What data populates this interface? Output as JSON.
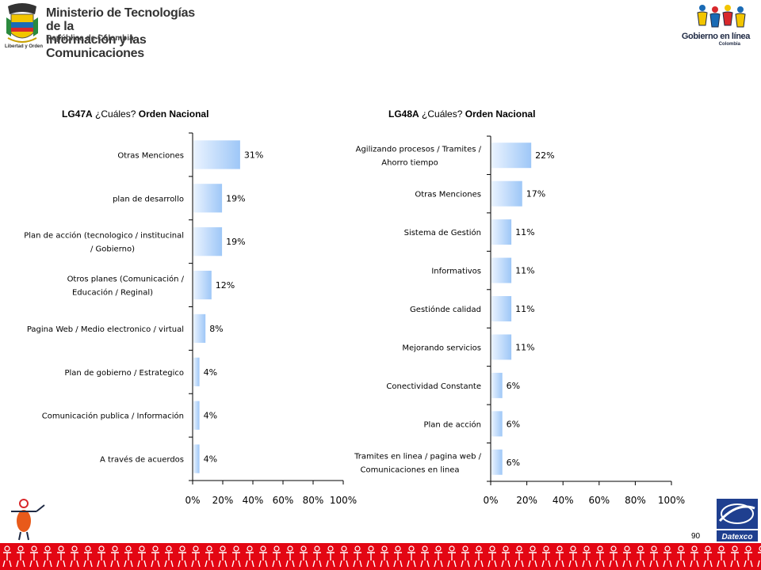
{
  "header": {
    "ministry_line1": "Ministerio de Tecnologías de la",
    "ministry_line2": "Información y las Comunicaciones",
    "ministry_sub": "República de Colombia",
    "motto": "Libertad y Orden",
    "gel_name": "Gobierno en línea",
    "gel_country": "Colombia"
  },
  "footer": {
    "page_number": "90",
    "datexco_label": "Datexco"
  },
  "colors": {
    "bar_light": "#eaf3ff",
    "bar_dark": "#9ec7f7",
    "footer_red": "#e30613",
    "brand_blue": "#1f3f8f"
  },
  "chart_data": [
    {
      "type": "bar",
      "orientation": "horizontal",
      "title_code": "LG47A",
      "title_question": "¿Cuáles?",
      "title_scope": "Orden Nacional",
      "categories": [
        [
          "Otras Menciones"
        ],
        [
          "plan de desarrollo"
        ],
        [
          "Plan de acción (tecnologico / institucinal",
          "/ Gobierno)"
        ],
        [
          "Otros planes (Comunicación /",
          "Educación / Reginal)"
        ],
        [
          "Pagina Web / Medio electronico  / virtual"
        ],
        [
          "Plan de gobierno / Estrategico"
        ],
        [
          "Comunicación publica / Información"
        ],
        [
          "A través de acuerdos"
        ]
      ],
      "values": [
        31,
        19,
        19,
        12,
        8,
        4,
        4,
        4
      ],
      "data_labels": [
        "31%",
        "19%",
        "19%",
        "12%",
        "8%",
        "4%",
        "4%",
        "4%"
      ],
      "xlim": [
        0,
        100
      ],
      "xticks": [
        "0%",
        "20%",
        "40%",
        "60%",
        "80%",
        "100%"
      ],
      "grid": false
    },
    {
      "type": "bar",
      "orientation": "horizontal",
      "title_code": "LG48A",
      "title_question": "¿Cuáles?",
      "title_scope": "Orden  Nacional",
      "categories": [
        [
          "Agilizando procesos / Tramites /",
          "Ahorro tiempo"
        ],
        [
          "Otras Menciones"
        ],
        [
          "Sistema de Gestión"
        ],
        [
          "Informativos"
        ],
        [
          "Gestiónde calidad"
        ],
        [
          "Mejorando servicios"
        ],
        [
          "Conectividad Constante"
        ],
        [
          "Plan de acción"
        ],
        [
          "Tramites en linea / pagina web /",
          "Comunicaciones en linea"
        ]
      ],
      "values": [
        22,
        17,
        11,
        11,
        11,
        11,
        6,
        6,
        6
      ],
      "data_labels": [
        "22%",
        "17%",
        "11%",
        "11%",
        "11%",
        "11%",
        "6%",
        "6%",
        "6%"
      ],
      "xlim": [
        0,
        100
      ],
      "xticks": [
        "0%",
        "20%",
        "40%",
        "60%",
        "80%",
        "100%"
      ],
      "grid": false
    }
  ]
}
